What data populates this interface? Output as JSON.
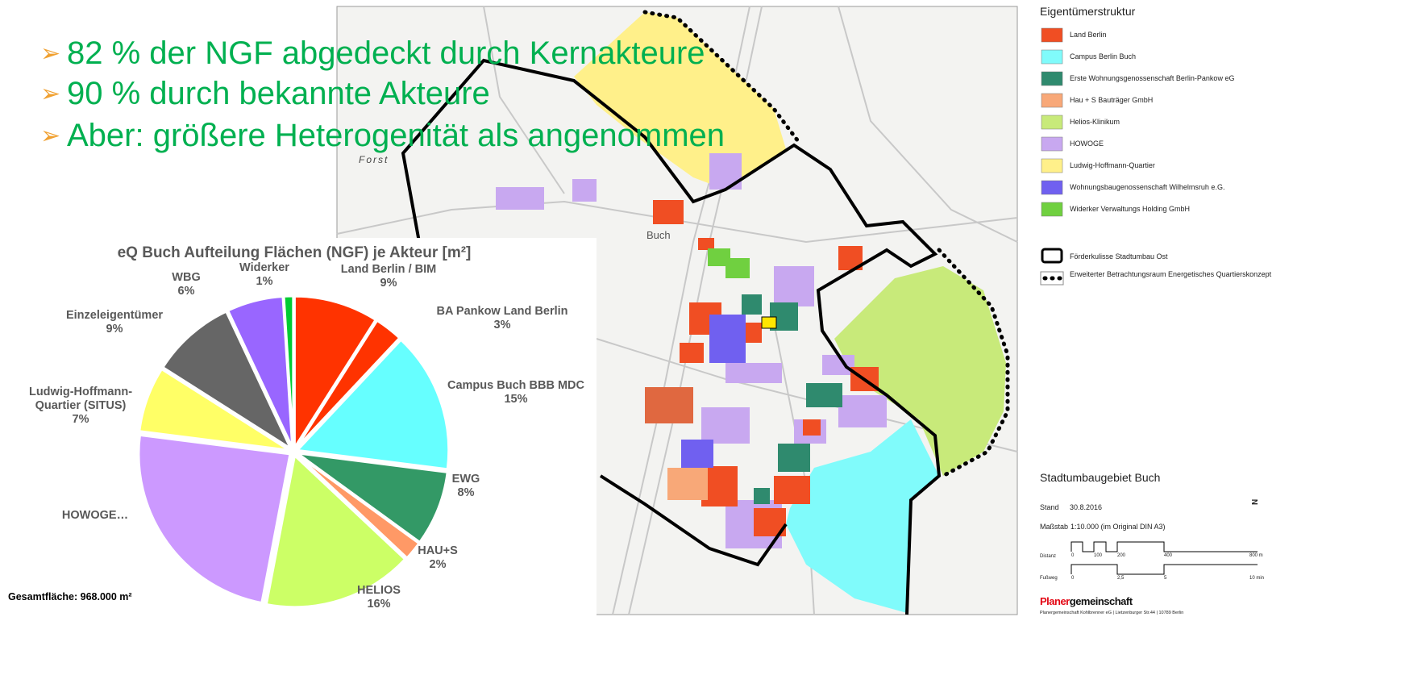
{
  "bullets": [
    "82 % der NGF abgedeckt durch Kernakteure",
    "90 % durch bekannte Akteure",
    "Aber: größere Heterogenität als angenommen"
  ],
  "map": {
    "labels": [
      "Forst",
      "Buch"
    ],
    "legend": {
      "title": "Eigentümerstruktur",
      "items": [
        {
          "label": "Land Berlin",
          "color": "#f04e23"
        },
        {
          "label": "Campus Berlin Buch",
          "color": "#80fbfb"
        },
        {
          "label": "Erste Wohnungsgenossenschaft Berlin-Pankow eG",
          "color": "#2f8a6e"
        },
        {
          "label": "Hau + S Bauträger GmbH",
          "color": "#f8a878"
        },
        {
          "label": "Helios-Klinikum",
          "color": "#c8ea7a"
        },
        {
          "label": "HOWOGE",
          "color": "#c8a8f0"
        },
        {
          "label": "Ludwig-Hoffmann-Quartier",
          "color": "#fff08a"
        },
        {
          "label": "Wohnungsbaugenossenschaft Wilhelmsruh e.G.",
          "color": "#7060f0"
        },
        {
          "label": "Widerker Verwaltungs Holding GmbH",
          "color": "#70d040"
        }
      ],
      "boundaries": [
        "Förderkulisse Stadtumbau Ost",
        "Erweiterter Betrachtungsraum Energetisches Quartierskonzept"
      ]
    },
    "info": {
      "title": "Stadtumbaugebiet Buch",
      "stand_label": "Stand",
      "stand": "30.8.2016",
      "scale_label": "Maßstab",
      "scale": "1:10.000 (im Original DIN A3)",
      "north": "N",
      "distance_label": "Distanz",
      "distance_ticks": [
        "0",
        "100",
        "200",
        "400",
        "800 m"
      ],
      "walk_label": "Fußweg",
      "walk_ticks": [
        "0",
        "2,5",
        "5",
        "10 min"
      ],
      "brand": [
        "Planer",
        "gemeinschaft"
      ],
      "address": "Planergemeinschaft Kohlbrenner eG  |  Lietzenburger Str.44  |  10789 Berlin"
    }
  },
  "chart_data": {
    "type": "pie",
    "title": "eQ Buch Aufteilung Flächen (NGF) je Akteur [m²]",
    "categories": [
      "Land Berlin / BIM",
      "BA Pankow  Land Berlin",
      "Campus Buch BBB MDC",
      "EWG",
      "HAU+S",
      "HELIOS",
      "HOWOGE…",
      "Ludwig-Hoffmann-Quartier (SITUS)",
      "Einzeleigentümer",
      "WBG",
      "Widerker"
    ],
    "values": [
      9,
      3,
      15,
      8,
      2,
      16,
      24,
      7,
      9,
      6,
      1
    ],
    "value_labels": [
      "9%",
      "3%",
      "15%",
      "8%",
      "2%",
      "16%",
      null,
      "7%",
      "9%",
      "6%",
      "1%"
    ],
    "colors": [
      "#ff3300",
      "#ff3300",
      "#66ffff",
      "#339966",
      "#ff9966",
      "#ccff66",
      "#cc99ff",
      "#ffff66",
      "#666666",
      "#9966ff",
      "#00cc33"
    ],
    "note": "Gesamtfläche: 968.000 m²"
  }
}
